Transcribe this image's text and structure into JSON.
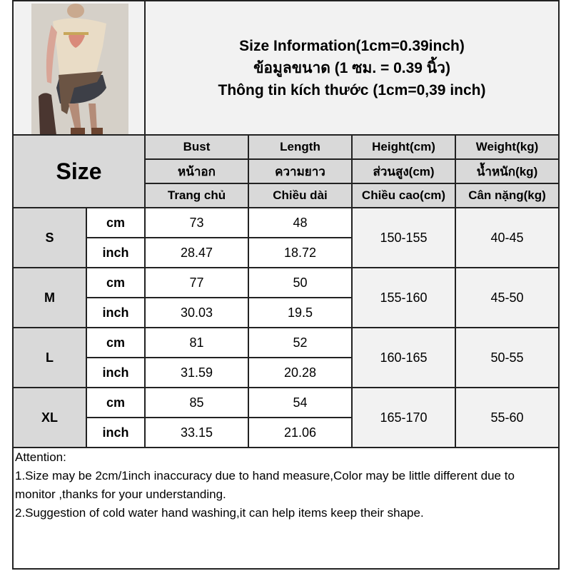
{
  "title": {
    "line1": "Size Information(1cm=0.39inch)",
    "line2": "ข้อมูลขนาด (1 ซม. = 0.39 นิ้ว)",
    "line3": "Thông tin kích thước (1cm=0,39 inch)"
  },
  "header": {
    "size_label": "Size",
    "columns": [
      {
        "en": "Bust",
        "th": "หน้าอก",
        "vi": "Trang chủ"
      },
      {
        "en": "Length",
        "th": "ความยาว",
        "vi": "Chiều dài"
      },
      {
        "en": "Height(cm)",
        "th": "ส่วนสูง(cm)",
        "vi": "Chiều cao(cm)"
      },
      {
        "en": "Weight(kg)",
        "th": "น้ำหนัก(kg)",
        "vi": "Cân nặng(kg)"
      }
    ]
  },
  "units": {
    "cm": "cm",
    "inch": "inch"
  },
  "sizes": [
    {
      "size": "S",
      "bust_cm": "73",
      "length_cm": "48",
      "bust_in": "28.47",
      "length_in": "18.72",
      "height": "150-155",
      "weight": "40-45"
    },
    {
      "size": "M",
      "bust_cm": "77",
      "length_cm": "50",
      "bust_in": "30.03",
      "length_in": "19.5",
      "height": "155-160",
      "weight": "45-50"
    },
    {
      "size": "L",
      "bust_cm": "81",
      "length_cm": "52",
      "bust_in": "31.59",
      "length_in": "20.28",
      "height": "160-165",
      "weight": "50-55"
    },
    {
      "size": "XL",
      "bust_cm": "85",
      "length_cm": "54",
      "bust_in": "33.15",
      "length_in": "21.06",
      "height": "165-170",
      "weight": "55-60"
    }
  ],
  "attention": {
    "heading": "Attention:",
    "note1": "1.Size may be 2cm/1inch inaccuracy due to hand measure,Color may be little different due to monitor ,thanks for your understanding.",
    "note2": "2.Suggestion of cold water hand washing,it can help items keep their shape."
  }
}
